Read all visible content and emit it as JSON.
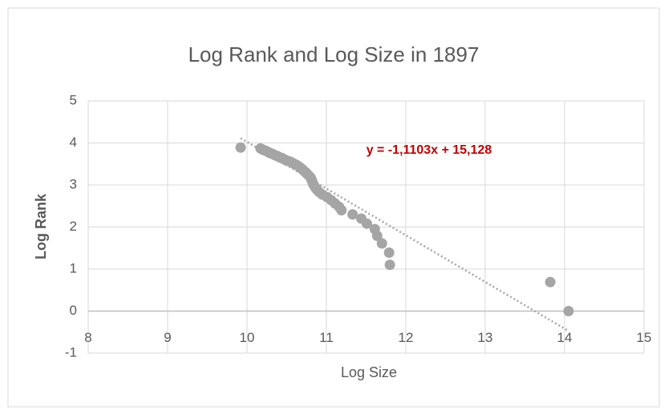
{
  "chart_data": {
    "type": "scatter",
    "title": "Log Rank and Log Size in 1897",
    "xlabel": "Log Size",
    "ylabel": "Log Rank",
    "x": [
      14.05,
      13.82,
      11.8,
      11.79,
      11.7,
      11.64,
      11.61,
      11.51,
      11.44,
      11.33,
      11.19,
      11.16,
      11.11,
      11.06,
      11.01,
      10.95,
      10.91,
      10.88,
      10.86,
      10.84,
      10.83,
      10.82,
      10.81,
      10.8,
      10.78,
      10.76,
      10.74,
      10.72,
      10.7,
      10.68,
      10.66,
      10.63,
      10.6,
      10.57,
      10.54,
      10.5,
      10.47,
      10.44,
      10.41,
      10.38,
      10.35,
      10.32,
      10.29,
      10.27,
      10.24,
      10.21,
      10.19,
      10.17,
      9.92
    ],
    "values": [
      0,
      0.69,
      1.1,
      1.39,
      1.61,
      1.79,
      1.95,
      2.08,
      2.2,
      2.3,
      2.4,
      2.48,
      2.56,
      2.64,
      2.71,
      2.77,
      2.83,
      2.89,
      2.94,
      3.0,
      3.04,
      3.09,
      3.14,
      3.18,
      3.22,
      3.26,
      3.3,
      3.33,
      3.37,
      3.4,
      3.43,
      3.47,
      3.5,
      3.53,
      3.56,
      3.58,
      3.61,
      3.64,
      3.66,
      3.69,
      3.71,
      3.74,
      3.76,
      3.78,
      3.81,
      3.83,
      3.85,
      3.87,
      3.89
    ],
    "color": "#a5a5a5",
    "trendline": {
      "slope": -1.1103,
      "intercept": 15.128,
      "label": "y = -1,1103x + 15,128",
      "color": "#c00000"
    },
    "xlim": [
      8,
      15
    ],
    "xticks": [
      8,
      9,
      10,
      11,
      12,
      13,
      14,
      15
    ],
    "ylim": [
      -1,
      5
    ],
    "yticks": [
      -1,
      0,
      1,
      2,
      3,
      4,
      5
    ],
    "grid": true
  }
}
